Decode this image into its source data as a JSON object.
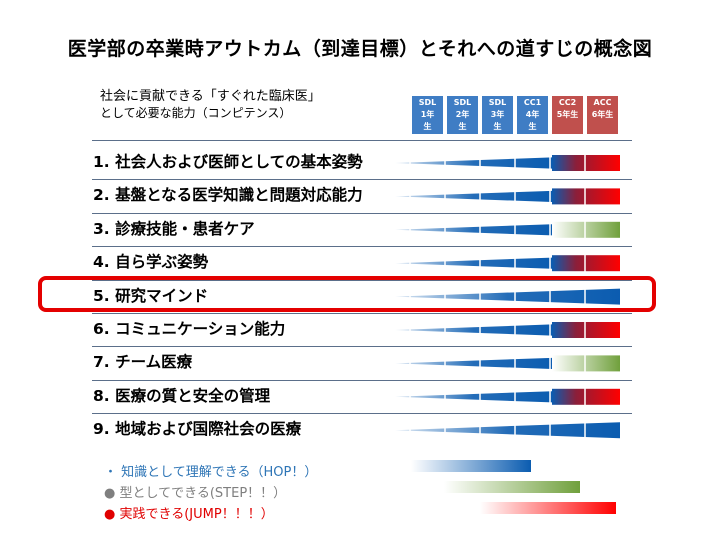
{
  "title": "医学部の卒業時アウトカム（到達目標）とそれへの道すじの概念図",
  "intro": {
    "line1": "社会に貢献できる「すぐれた臨床医」",
    "line2": "として必要な能力（コンピテンス）"
  },
  "columns": [
    {
      "l1": "SDL",
      "l2": "1年",
      "l3": "生",
      "color": "#3f7dc4"
    },
    {
      "l1": "SDL",
      "l2": "2年",
      "l3": "生",
      "color": "#3f7dc4"
    },
    {
      "l1": "SDL",
      "l2": "3年",
      "l3": "生",
      "color": "#3f7dc4"
    },
    {
      "l1": "CC1",
      "l2": "4年",
      "l3": "生",
      "color": "#3f7dc4"
    },
    {
      "l1": "CC2",
      "l2": "5年生",
      "l3": "",
      "color": "#c0504d"
    },
    {
      "l1": "ACC",
      "l2": "6年生",
      "l3": "",
      "color": "#c0504d"
    }
  ],
  "competencies": [
    {
      "label": "1. 社会人および医師としての基本姿勢",
      "wedge_start": 0.0,
      "blue_end": 4,
      "final": "red"
    },
    {
      "label": "2. 基盤となる医学知識と問題対応能力",
      "wedge_start": 0.0,
      "blue_end": 4,
      "final": "red"
    },
    {
      "label": "3. 診療技能・患者ケア",
      "wedge_start": 0.0,
      "blue_end": 4,
      "final": "green"
    },
    {
      "label": "4. 自ら学ぶ姿勢",
      "wedge_start": 0.0,
      "blue_end": 4,
      "final": "red"
    },
    {
      "label": "5. 研究マインド",
      "wedge_start": 0.0,
      "blue_end": 6,
      "final": "blue"
    },
    {
      "label": "6. コミュニケーション能力",
      "wedge_start": 0.0,
      "blue_end": 4,
      "final": "red"
    },
    {
      "label": "7. チーム医療",
      "wedge_start": 0.0,
      "blue_end": 4,
      "final": "green"
    },
    {
      "label": "8. 医療の質と安全の管理",
      "wedge_start": 0.0,
      "blue_end": 4,
      "final": "red"
    },
    {
      "label": "9. 地域および国際社会の医療",
      "wedge_start": 0.0,
      "blue_end": 6,
      "final": "blue"
    }
  ],
  "legend": [
    {
      "bullet": "・",
      "text": "知識として理解できる（HOP！）",
      "color": "#2e75b6",
      "bar": "blue"
    },
    {
      "bullet": "●",
      "text": "型としてできる(STEP！！）",
      "color": "#7f7f7f",
      "bar": "green"
    },
    {
      "bullet": "●",
      "text": "実践できる(JUMP！！！）",
      "color": "#e00000",
      "bar": "red"
    }
  ],
  "colors": {
    "blue": "#0b5cb0",
    "green": "#70a03c",
    "red": "#ff0000",
    "highlight": "#e40000"
  }
}
